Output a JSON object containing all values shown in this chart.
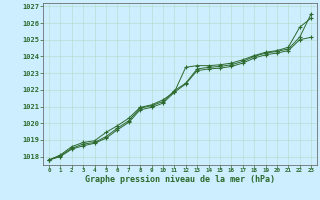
{
  "title": "Graphe pression niveau de la mer (hPa)",
  "background_color": "#cceeff",
  "grid_color": "#b8ddd0",
  "line_color": "#2d6a2d",
  "x_values": [
    0,
    1,
    2,
    3,
    4,
    5,
    6,
    7,
    8,
    9,
    10,
    11,
    12,
    13,
    14,
    15,
    16,
    17,
    18,
    19,
    20,
    21,
    22,
    23
  ],
  "series1": [
    1017.8,
    1018.1,
    1018.6,
    1018.85,
    1018.95,
    1019.45,
    1019.85,
    1020.3,
    1020.95,
    1021.1,
    1021.4,
    1021.85,
    1023.35,
    1023.45,
    1023.45,
    1023.5,
    1023.6,
    1023.8,
    1024.05,
    1024.25,
    1024.35,
    1024.55,
    1025.75,
    1026.3
  ],
  "series2": [
    1017.8,
    1018.05,
    1018.5,
    1018.75,
    1018.85,
    1019.2,
    1019.7,
    1020.15,
    1020.9,
    1021.05,
    1021.3,
    1021.95,
    1022.4,
    1023.25,
    1023.35,
    1023.4,
    1023.5,
    1023.7,
    1024.0,
    1024.2,
    1024.3,
    1024.45,
    1025.15,
    1026.55
  ],
  "series3": [
    1017.8,
    1018.0,
    1018.45,
    1018.65,
    1018.8,
    1019.1,
    1019.6,
    1020.05,
    1020.8,
    1020.95,
    1021.2,
    1021.85,
    1022.35,
    1023.15,
    1023.25,
    1023.3,
    1023.4,
    1023.6,
    1023.9,
    1024.1,
    1024.2,
    1024.35,
    1025.0,
    1025.15
  ],
  "ylim_min": 1017.5,
  "ylim_max": 1027.2,
  "ytick_min": 1018,
  "ytick_max": 1027,
  "ytick_step": 1
}
